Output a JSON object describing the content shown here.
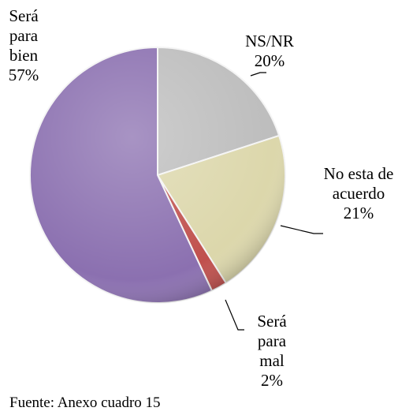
{
  "chart_data": {
    "type": "pie",
    "categories": [
      "NS/NR",
      "No esta de acuerdo",
      "Será para mal",
      "Será para bien"
    ],
    "values": [
      20,
      21,
      2,
      57
    ],
    "value_labels": [
      "20%",
      "21%",
      "2%",
      "57%"
    ],
    "colors": [
      "#bdbdbd",
      "#dcd7ab",
      "#c0504d",
      "#8b70b0"
    ],
    "note": "Fuente: Anexo cuadro 15"
  }
}
